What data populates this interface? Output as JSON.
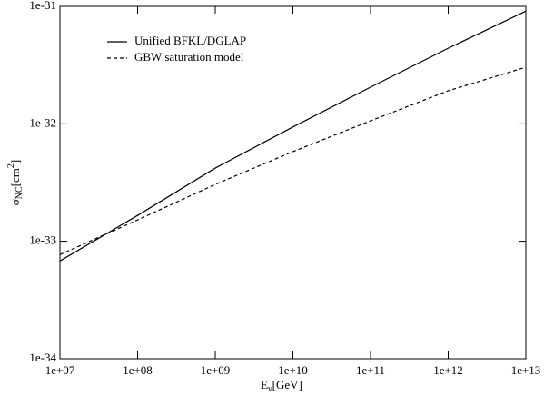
{
  "chart_data": {
    "type": "line",
    "x": [
      10000000,
      100000000,
      1000000000,
      10000000000,
      100000000000,
      1000000000000,
      10000000000000
    ],
    "series": [
      {
        "name": "Unified BFKL/DGLAP",
        "color": "#000000",
        "dash": "solid",
        "values": [
          6.8e-34,
          1.66e-33,
          4.2e-33,
          9.4e-33,
          2.05e-32,
          4.4e-32,
          9.1e-32
        ]
      },
      {
        "name": "GBW saturation model",
        "color": "#000000",
        "dash": "dashed",
        "values": [
          7.7e-34,
          1.52e-33,
          3.05e-33,
          5.8e-33,
          1.06e-32,
          1.91e-32,
          3.03e-32
        ]
      }
    ],
    "xlim": [
      10000000,
      10000000000000
    ],
    "ylim": [
      1e-34,
      1e-31
    ],
    "xscale": "log",
    "yscale": "log",
    "xticks": [
      {
        "value": 10000000,
        "label": "1e+07"
      },
      {
        "value": 100000000,
        "label": "1e+08"
      },
      {
        "value": 1000000000,
        "label": "1e+09"
      },
      {
        "value": 10000000000,
        "label": "1e+10"
      },
      {
        "value": 100000000000,
        "label": "1e+11"
      },
      {
        "value": 1000000000000,
        "label": "1e+12"
      },
      {
        "value": 10000000000000,
        "label": "1e+13"
      }
    ],
    "yticks": [
      {
        "value": 1e-34,
        "label": "1e-34"
      },
      {
        "value": 1e-33,
        "label": "1e-33"
      },
      {
        "value": 1e-32,
        "label": "1e-32"
      },
      {
        "value": 1e-31,
        "label": "1e-31"
      }
    ],
    "xlabel": [
      "E",
      "ν",
      "[GeV]"
    ],
    "ylabel": [
      "σ",
      "NC",
      "[cm",
      "2",
      "]"
    ],
    "legend": "top-left",
    "grid": false
  }
}
